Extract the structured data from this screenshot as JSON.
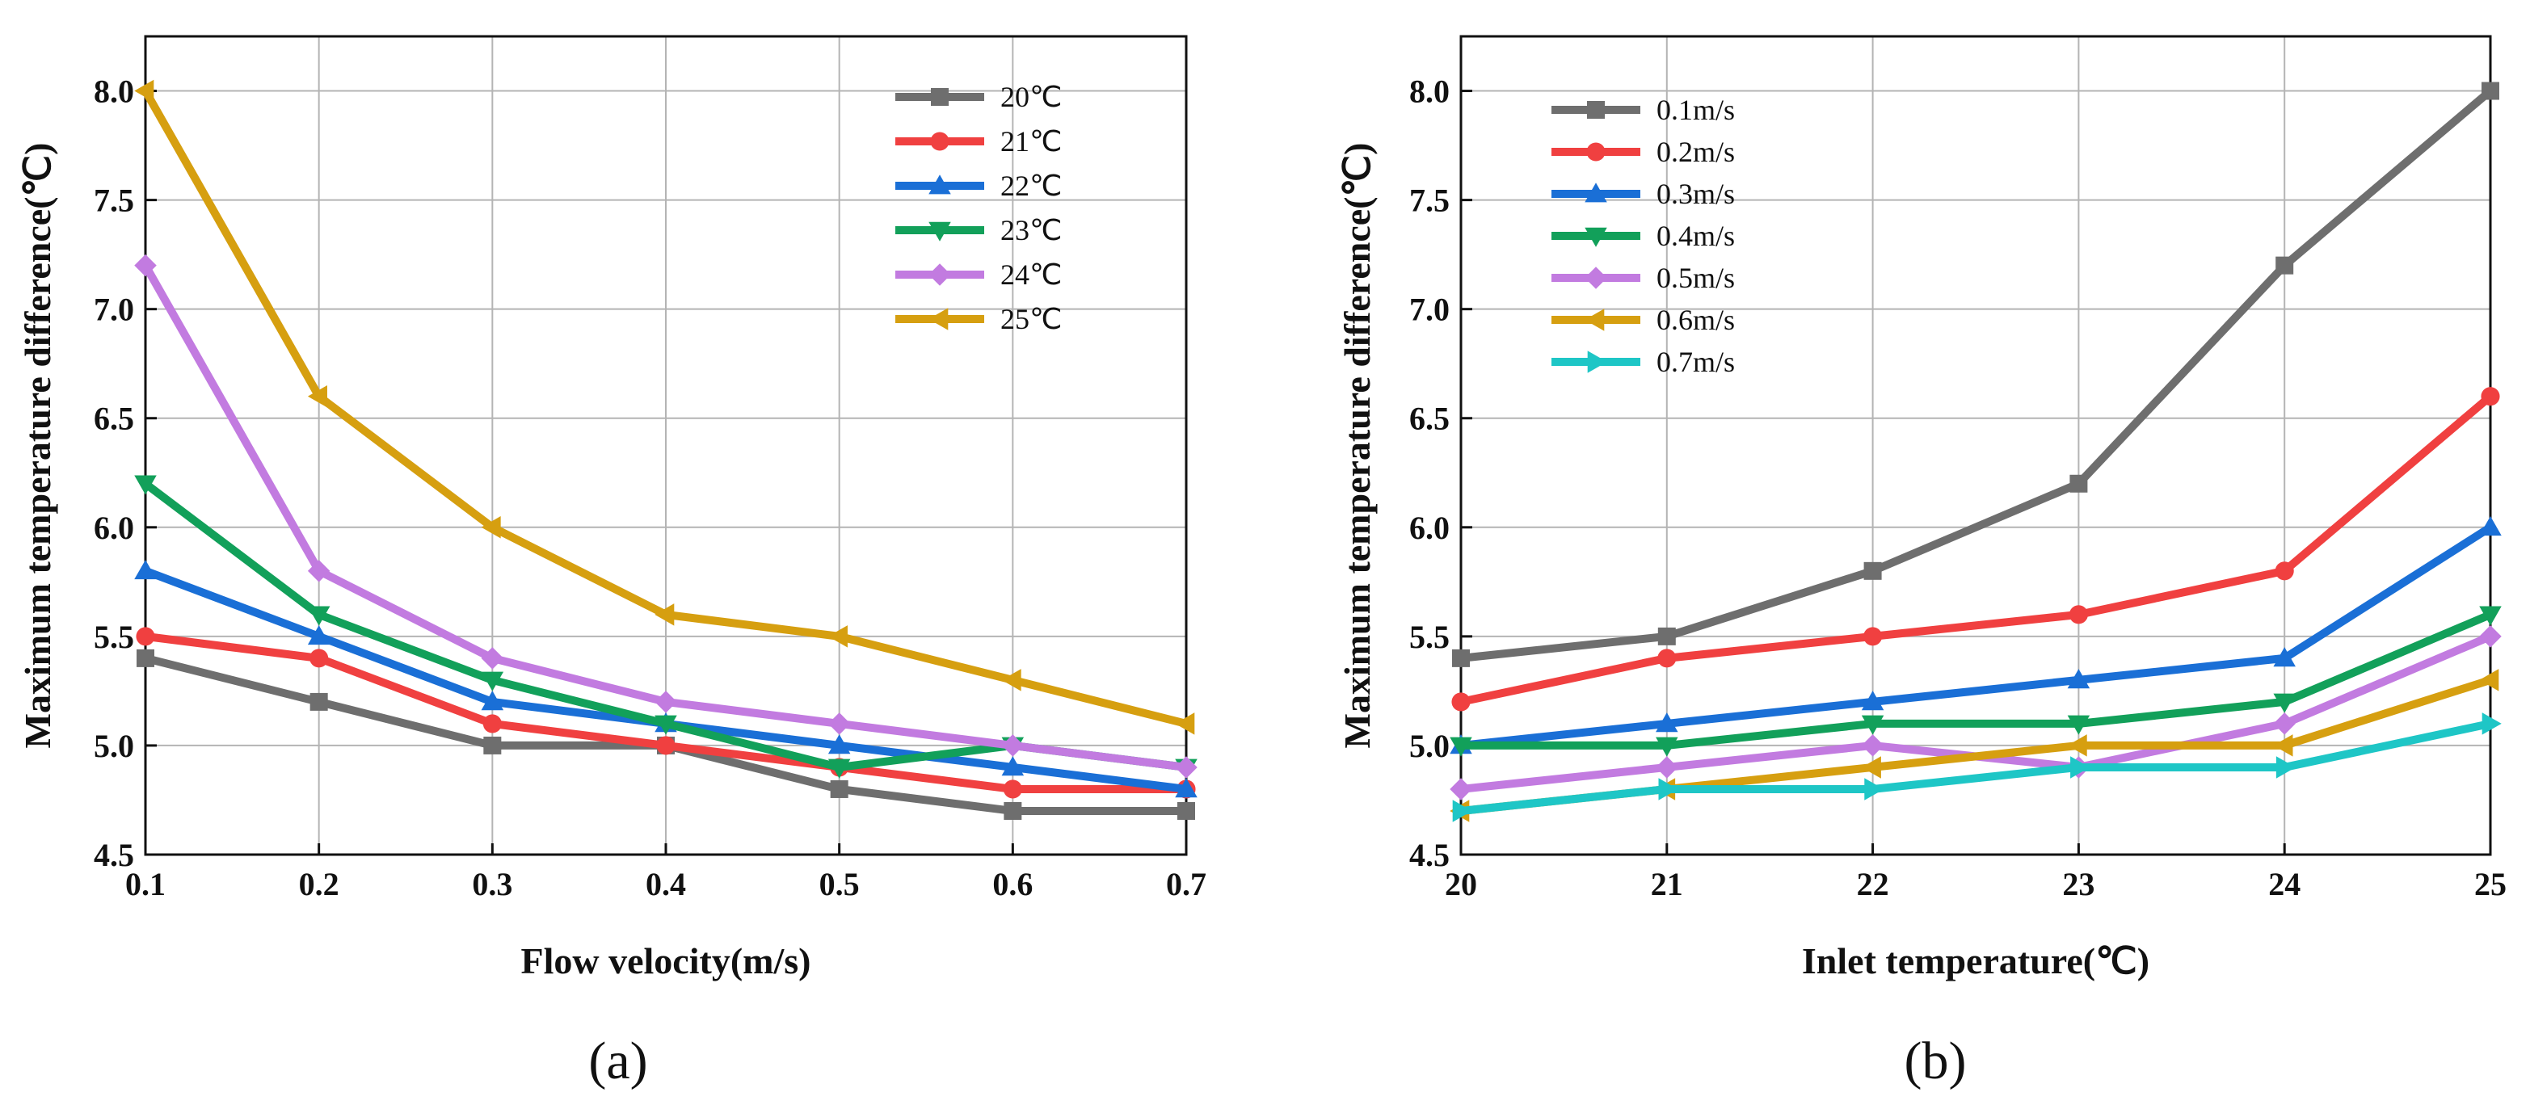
{
  "chart_data": [
    {
      "type": "line",
      "panel_label": "(a)",
      "xlabel": "Flow velocity(m/s)",
      "ylabel": "Maximum temperature difference(℃)",
      "x": [
        0.1,
        0.2,
        0.3,
        0.4,
        0.5,
        0.6,
        0.7
      ],
      "xlim": [
        0.1,
        0.7
      ],
      "ylim": [
        4.5,
        8.25
      ],
      "x_ticks": [
        0.1,
        0.2,
        0.3,
        0.4,
        0.5,
        0.6,
        0.7
      ],
      "x_tick_labels": [
        "0.1",
        "0.2",
        "0.3",
        "0.4",
        "0.5",
        "0.6",
        "0.7"
      ],
      "y_ticks": [
        4.5,
        5.0,
        5.5,
        6.0,
        6.5,
        7.0,
        7.5,
        8.0
      ],
      "y_tick_labels": [
        "4.5",
        "5.0",
        "5.5",
        "6.0",
        "6.5",
        "7.0",
        "7.5",
        "8.0"
      ],
      "grid": true,
      "legend_position": "top-right",
      "series": [
        {
          "name": "20℃",
          "color": "#6e6e6e",
          "marker": "square",
          "values": [
            5.4,
            5.2,
            5.0,
            5.0,
            4.8,
            4.7,
            4.7
          ]
        },
        {
          "name": "21℃",
          "color": "#f04040",
          "marker": "circle",
          "values": [
            5.5,
            5.4,
            5.1,
            5.0,
            4.9,
            4.8,
            4.8
          ]
        },
        {
          "name": "22℃",
          "color": "#1a6fd6",
          "marker": "triangle-up",
          "values": [
            5.8,
            5.5,
            5.2,
            5.1,
            5.0,
            4.9,
            4.8
          ]
        },
        {
          "name": "23℃",
          "color": "#12a05a",
          "marker": "triangle-down",
          "values": [
            6.2,
            5.6,
            5.3,
            5.1,
            4.9,
            5.0,
            4.9
          ]
        },
        {
          "name": "24℃",
          "color": "#c27be0",
          "marker": "diamond",
          "values": [
            7.2,
            5.8,
            5.4,
            5.2,
            5.1,
            5.0,
            4.9
          ]
        },
        {
          "name": "25℃",
          "color": "#d69f10",
          "marker": "triangle-left",
          "values": [
            8.0,
            6.6,
            6.0,
            5.6,
            5.5,
            5.3,
            5.1
          ]
        }
      ]
    },
    {
      "type": "line",
      "panel_label": "(b)",
      "xlabel": "Inlet temperature(℃)",
      "ylabel": "Maximum temperature difference(℃)",
      "x": [
        20,
        21,
        22,
        23,
        24,
        25
      ],
      "xlim": [
        20,
        25
      ],
      "ylim": [
        4.5,
        8.25
      ],
      "x_ticks": [
        20,
        21,
        22,
        23,
        24,
        25
      ],
      "x_tick_labels": [
        "20",
        "21",
        "22",
        "23",
        "24",
        "25"
      ],
      "y_ticks": [
        4.5,
        5.0,
        5.5,
        6.0,
        6.5,
        7.0,
        7.5,
        8.0
      ],
      "y_tick_labels": [
        "4.5",
        "5.0",
        "5.5",
        "6.0",
        "6.5",
        "7.0",
        "7.5",
        "8.0"
      ],
      "grid": true,
      "legend_position": "top-left",
      "series": [
        {
          "name": "0.1m/s",
          "color": "#6e6e6e",
          "marker": "square",
          "values": [
            5.4,
            5.5,
            5.8,
            6.2,
            7.2,
            8.0
          ]
        },
        {
          "name": "0.2m/s",
          "color": "#f04040",
          "marker": "circle",
          "values": [
            5.2,
            5.4,
            5.5,
            5.6,
            5.8,
            6.6
          ]
        },
        {
          "name": "0.3m/s",
          "color": "#1a6fd6",
          "marker": "triangle-up",
          "values": [
            5.0,
            5.1,
            5.2,
            5.3,
            5.4,
            6.0
          ]
        },
        {
          "name": "0.4m/s",
          "color": "#12a05a",
          "marker": "triangle-down",
          "values": [
            5.0,
            5.0,
            5.1,
            5.1,
            5.2,
            5.6
          ]
        },
        {
          "name": "0.5m/s",
          "color": "#c27be0",
          "marker": "diamond",
          "values": [
            4.8,
            4.9,
            5.0,
            4.9,
            5.1,
            5.5
          ]
        },
        {
          "name": "0.6m/s",
          "color": "#d69f10",
          "marker": "triangle-left",
          "values": [
            4.7,
            4.8,
            4.9,
            5.0,
            5.0,
            5.3
          ]
        },
        {
          "name": "0.7m/s",
          "color": "#1ec6c6",
          "marker": "triangle-right",
          "values": [
            4.7,
            4.8,
            4.8,
            4.9,
            4.9,
            5.1
          ]
        }
      ]
    }
  ]
}
